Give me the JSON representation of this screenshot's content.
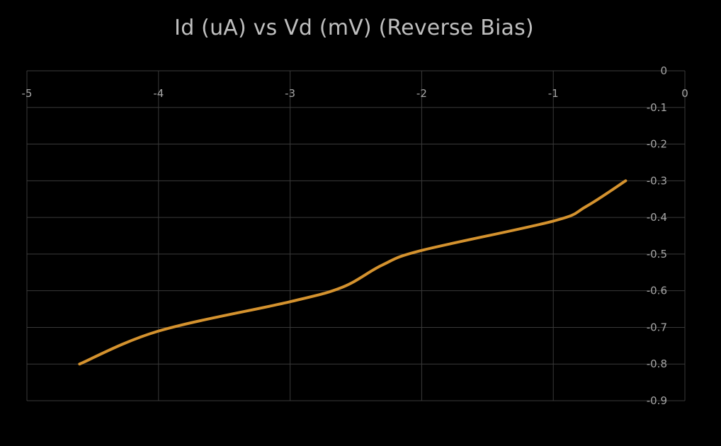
{
  "chart_data": {
    "type": "line",
    "title": "Id (uA) vs Vd (mV) (Reverse Bias)",
    "xlabel": "",
    "ylabel": "",
    "xlim": [
      -5,
      0
    ],
    "ylim": [
      -0.9,
      0
    ],
    "x_ticks": [
      -5,
      -4,
      -3,
      -2,
      -1,
      0
    ],
    "y_ticks": [
      0,
      -0.1,
      -0.2,
      -0.3,
      -0.4,
      -0.5,
      -0.6,
      -0.7,
      -0.8,
      -0.9
    ],
    "x_tick_labels": [
      "-5",
      "-4",
      "-3",
      "-2",
      "-1",
      "0"
    ],
    "y_tick_labels": [
      "0",
      "-0.1",
      "-0.2",
      "-0.3",
      "-0.4",
      "-0.5",
      "-0.6",
      "-0.7",
      "-0.8",
      "-0.9"
    ],
    "grid": true,
    "legend": "none",
    "series": [
      {
        "color": "#d4922e",
        "smooth": true,
        "points": [
          {
            "x": -4.6,
            "y": -0.8
          },
          {
            "x": -4.0,
            "y": -0.71
          },
          {
            "x": -3.0,
            "y": -0.63
          },
          {
            "x": -2.6,
            "y": -0.59
          },
          {
            "x": -2.3,
            "y": -0.53
          },
          {
            "x": -2.0,
            "y": -0.49
          },
          {
            "x": -1.0,
            "y": -0.41
          },
          {
            "x": -0.75,
            "y": -0.37
          },
          {
            "x": -0.45,
            "y": -0.3
          }
        ]
      }
    ]
  },
  "colors": {
    "background": "#000000",
    "grid": "#3a3a3a",
    "text": "#a6a6a6",
    "title": "#bfbfbf",
    "series": "#d4922e"
  }
}
